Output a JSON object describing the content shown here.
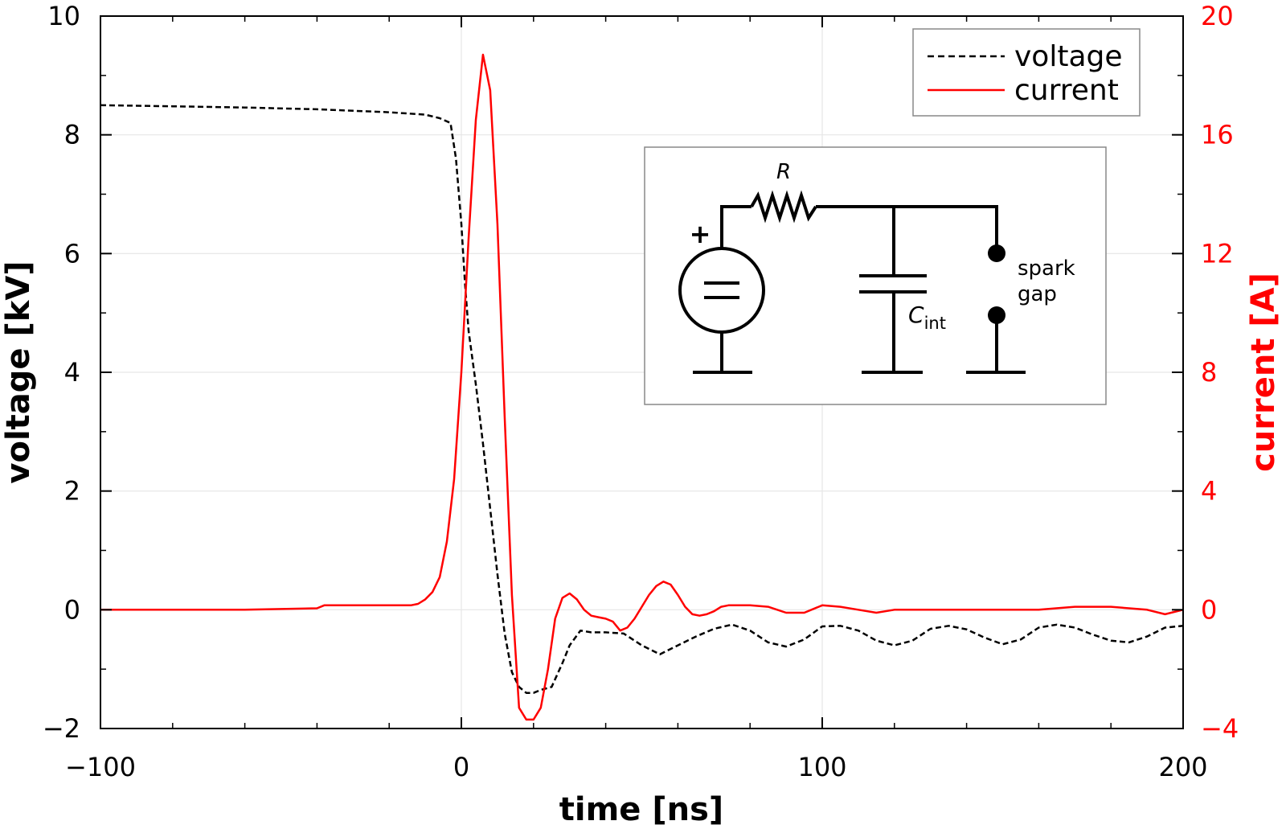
{
  "chart_data": {
    "type": "line",
    "xlabel": "time [ns]",
    "ylabel": "voltage [kV]",
    "y2label": "current [A]",
    "xlim": [
      -100,
      200
    ],
    "ylim": [
      -2,
      10
    ],
    "y2lim": [
      -4,
      20
    ],
    "x_ticks": [
      -100,
      0,
      100,
      200
    ],
    "y_ticks": [
      -2,
      0,
      2,
      4,
      6,
      8,
      10
    ],
    "y2_ticks": [
      -4,
      0,
      4,
      8,
      12,
      16,
      20
    ],
    "x_tick_labels": [
      "−100",
      "0",
      "100",
      "200"
    ],
    "y_tick_labels": [
      "−2",
      "0",
      "2",
      "4",
      "6",
      "8",
      "10"
    ],
    "y2_tick_labels": [
      "−4",
      "0",
      "4",
      "8",
      "12",
      "16",
      "20"
    ],
    "grid": true,
    "legend_position": "top-right",
    "colors": {
      "voltage": "#000000",
      "current": "#ff0000",
      "grid": "#e6e6e6"
    },
    "series": [
      {
        "name": "voltage",
        "axis": "left",
        "style": "dashed",
        "color": "#000000",
        "x": [
          -100,
          -80,
          -60,
          -40,
          -20,
          -10,
          -6,
          -3,
          -1.5,
          0,
          1,
          2,
          4,
          6,
          8,
          10,
          12,
          14,
          16,
          18,
          20,
          22,
          25,
          28,
          30,
          33,
          36,
          40,
          45,
          50,
          55,
          60,
          65,
          70,
          75,
          80,
          85,
          90,
          95,
          100,
          105,
          110,
          115,
          120,
          125,
          130,
          135,
          140,
          145,
          150,
          155,
          160,
          165,
          170,
          175,
          180,
          185,
          190,
          195,
          200
        ],
        "y": [
          8.5,
          8.48,
          8.46,
          8.43,
          8.38,
          8.34,
          8.28,
          8.2,
          7.6,
          6.5,
          5.5,
          4.7,
          3.8,
          2.8,
          1.7,
          0.6,
          -0.4,
          -1.05,
          -1.3,
          -1.4,
          -1.4,
          -1.35,
          -1.3,
          -0.9,
          -0.6,
          -0.35,
          -0.38,
          -0.38,
          -0.4,
          -0.6,
          -0.75,
          -0.6,
          -0.45,
          -0.32,
          -0.25,
          -0.35,
          -0.55,
          -0.62,
          -0.5,
          -0.28,
          -0.27,
          -0.35,
          -0.52,
          -0.6,
          -0.52,
          -0.32,
          -0.27,
          -0.33,
          -0.47,
          -0.58,
          -0.5,
          -0.3,
          -0.25,
          -0.3,
          -0.42,
          -0.52,
          -0.55,
          -0.45,
          -0.3,
          -0.27
        ]
      },
      {
        "name": "current",
        "axis": "right",
        "style": "solid",
        "color": "#ff0000",
        "x": [
          -100,
          -60,
          -40,
          -38,
          -30,
          -20,
          -14,
          -12,
          -10,
          -8,
          -6,
          -4,
          -2,
          0,
          2,
          4,
          6,
          8,
          10,
          12,
          14,
          16,
          18,
          20,
          22,
          24,
          26,
          28,
          30,
          32,
          34,
          36,
          38,
          40,
          42,
          44,
          46,
          48,
          50,
          52,
          54,
          56,
          58,
          60,
          62,
          64,
          66,
          68,
          70,
          72,
          74,
          80,
          85,
          90,
          95,
          100,
          105,
          110,
          115,
          120,
          130,
          140,
          150,
          160,
          170,
          180,
          190,
          195,
          200
        ],
        "y": [
          0,
          0,
          0.05,
          0.15,
          0.15,
          0.15,
          0.15,
          0.2,
          0.35,
          0.6,
          1.1,
          2.3,
          4.4,
          8.0,
          12.5,
          16.5,
          18.7,
          17.5,
          13.0,
          6.5,
          0.5,
          -3.3,
          -3.7,
          -3.7,
          -3.3,
          -2.0,
          -0.3,
          0.4,
          0.55,
          0.35,
          0.0,
          -0.2,
          -0.25,
          -0.3,
          -0.4,
          -0.7,
          -0.6,
          -0.3,
          0.1,
          0.5,
          0.8,
          0.95,
          0.85,
          0.5,
          0.1,
          -0.15,
          -0.2,
          -0.15,
          -0.05,
          0.1,
          0.15,
          0.15,
          0.1,
          -0.1,
          -0.1,
          0.15,
          0.1,
          0.0,
          -0.1,
          0.0,
          0.0,
          0.0,
          0.0,
          0.0,
          0.1,
          0.1,
          0.0,
          -0.15,
          0.0
        ]
      }
    ]
  },
  "legend": {
    "voltage_label": "voltage",
    "current_label": "current"
  },
  "inset": {
    "resistor_label": "R",
    "capacitor_label": "C",
    "capacitor_subscript": "int",
    "plus_sign": "+",
    "spark_label_line1": "spark",
    "spark_label_line2": "gap"
  }
}
